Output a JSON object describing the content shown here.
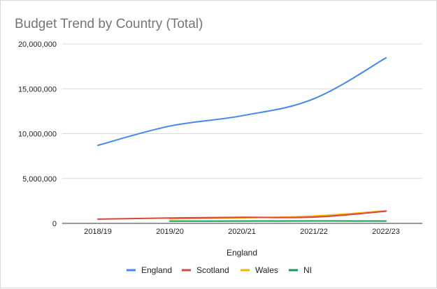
{
  "chart_data": {
    "type": "line",
    "title": "Budget Trend by Country (Total)",
    "xlabel": "England",
    "ylabel": "",
    "categories": [
      "2018/19",
      "2019/20",
      "2020/21",
      "2021/22",
      "2022/23"
    ],
    "ylim": [
      0,
      20000000
    ],
    "yticks": [
      0,
      5000000,
      10000000,
      15000000,
      20000000
    ],
    "ytick_labels": [
      "0",
      "5,000,000",
      "10,000,000",
      "15,000,000",
      "20,000,000"
    ],
    "grid": true,
    "legend_position": "bottom",
    "series": [
      {
        "name": "England",
        "color": "#4285f4",
        "values": [
          8700000,
          10850000,
          12000000,
          13900000,
          18450000
        ]
      },
      {
        "name": "Scotland",
        "color": "#db4437",
        "values": [
          480000,
          600000,
          680000,
          700000,
          1350000
        ]
      },
      {
        "name": "Wales",
        "color": "#f4b400",
        "values": [
          null,
          500000,
          620000,
          820000,
          1400000
        ]
      },
      {
        "name": "NI",
        "color": "#0f9d58",
        "values": [
          null,
          250000,
          260000,
          270000,
          260000
        ]
      }
    ]
  }
}
